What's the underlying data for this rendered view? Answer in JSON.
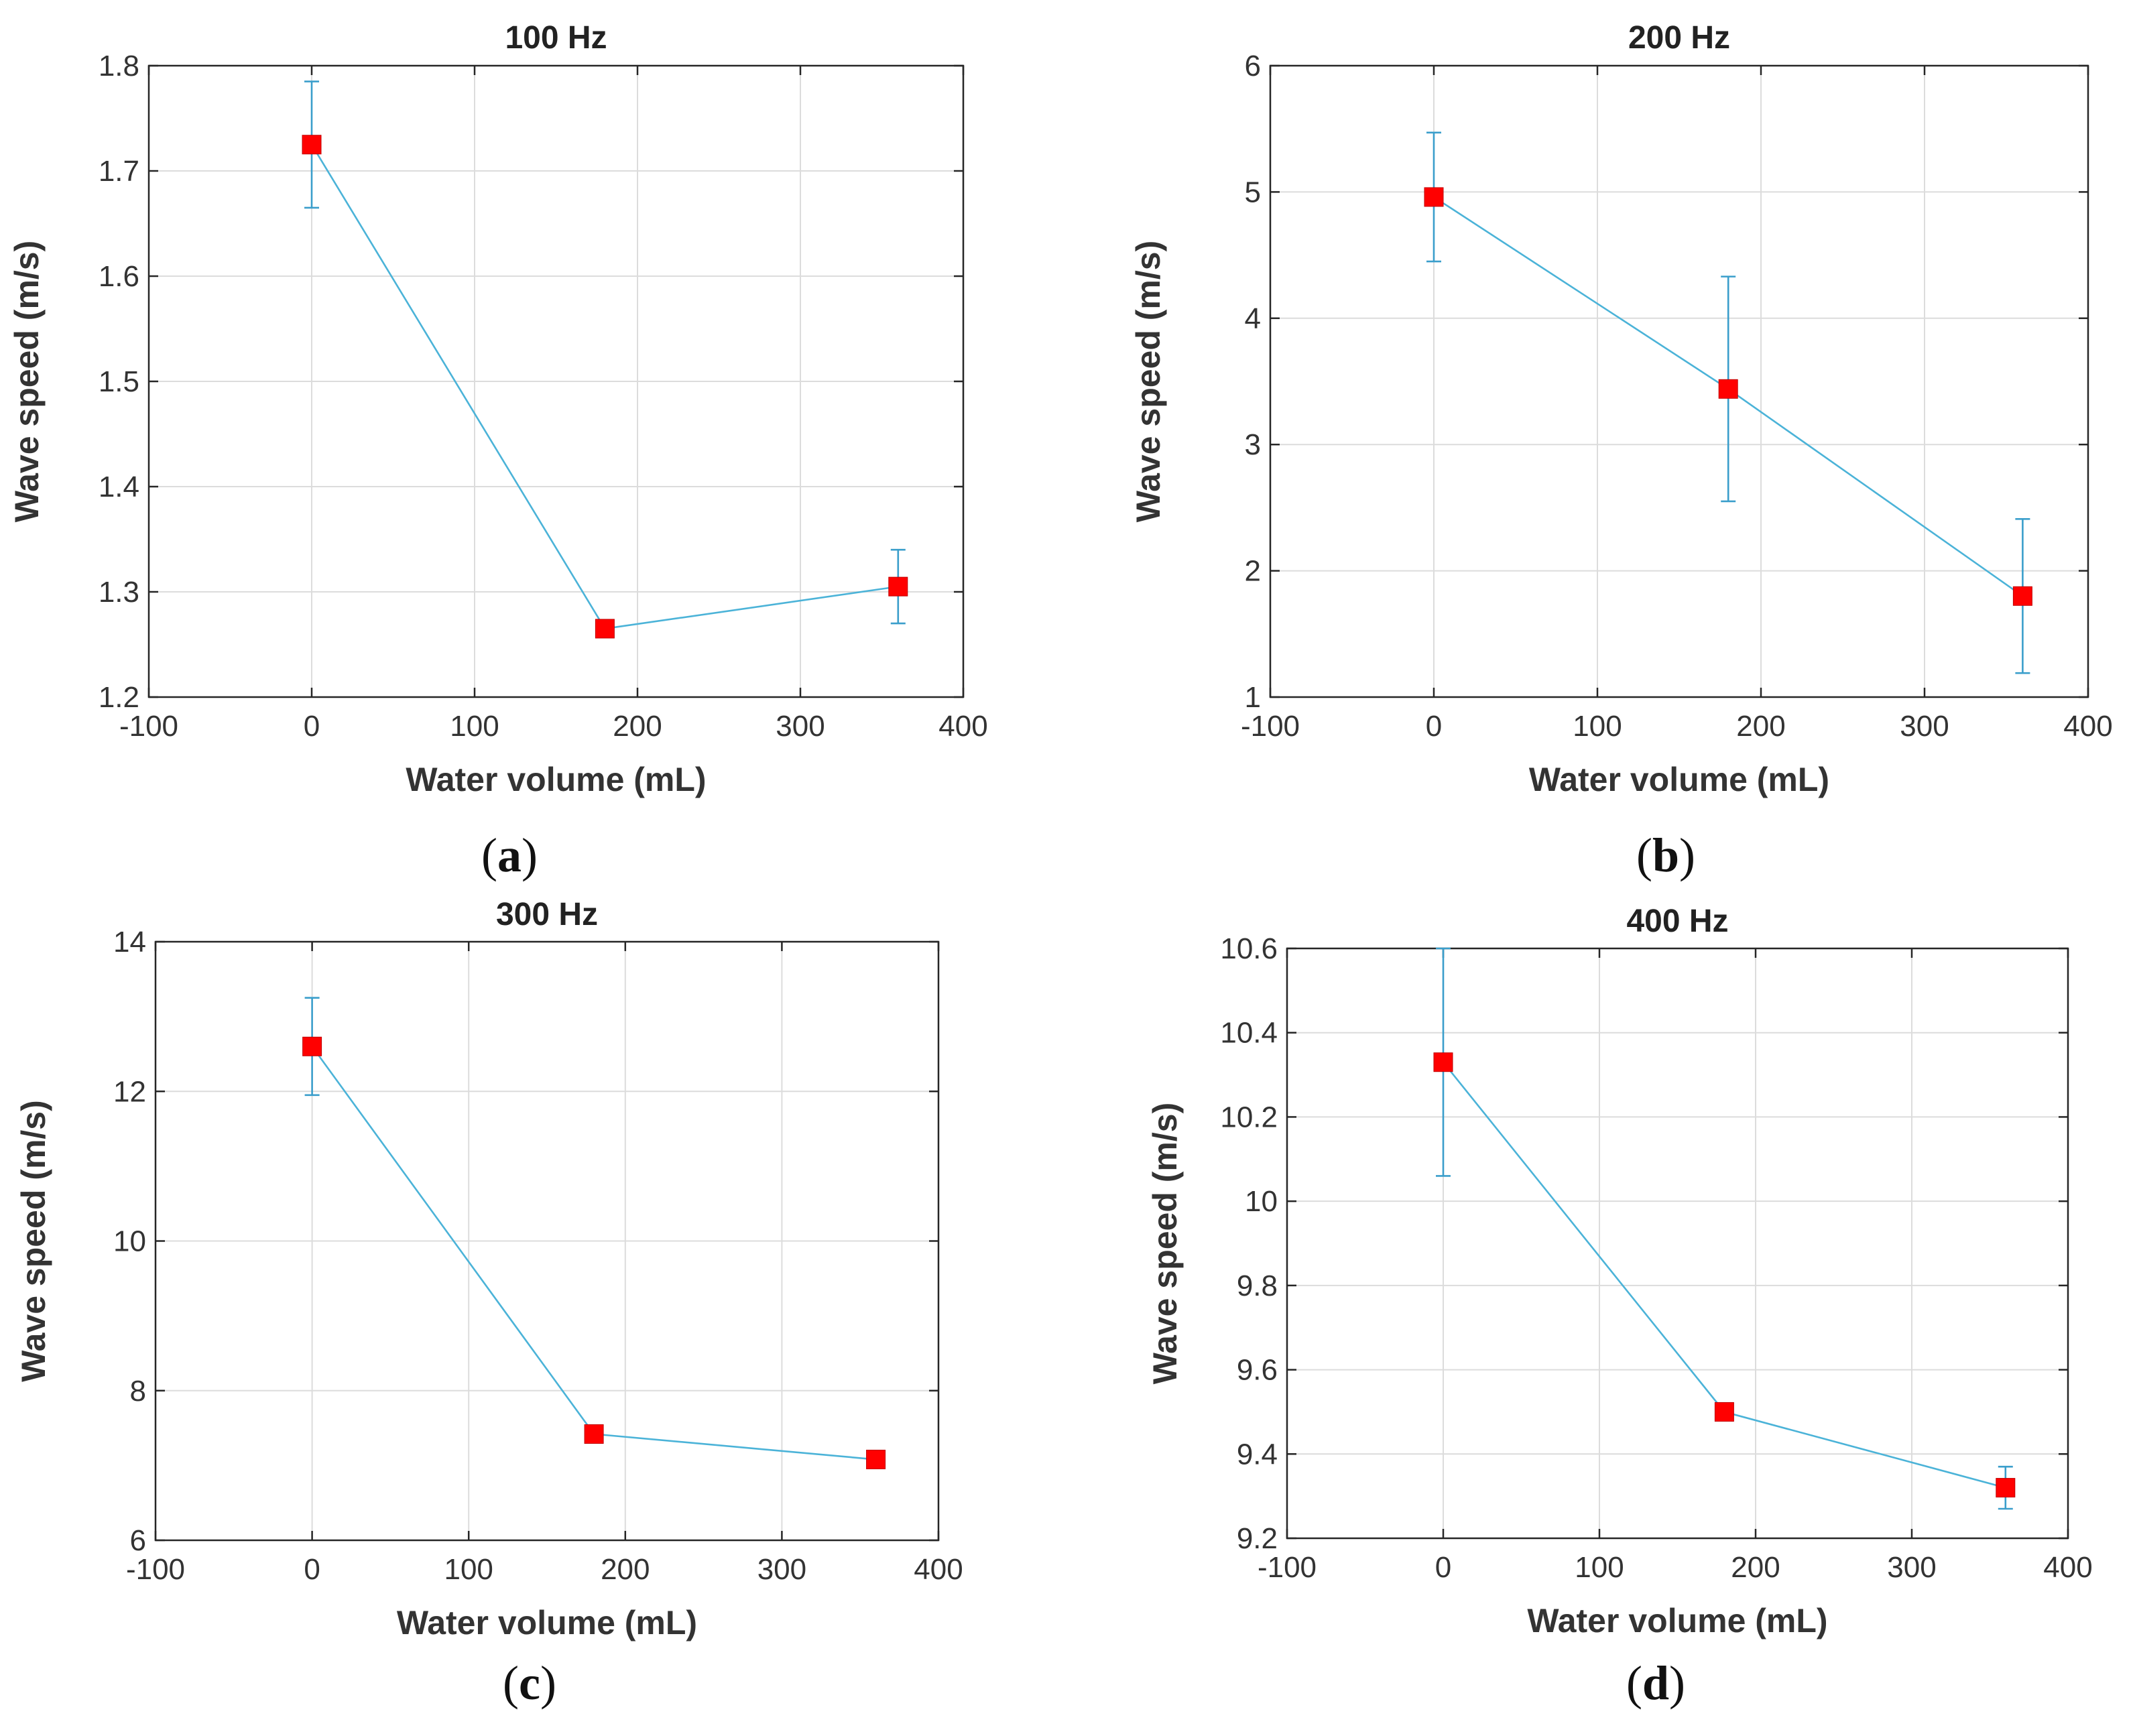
{
  "chart_data": [
    {
      "type": "line",
      "panel_letter": "a",
      "title": "100 Hz",
      "xlabel": "Water volume (mL)",
      "ylabel": "Wave speed (m/s)",
      "xlim": [
        -100,
        400
      ],
      "ylim": [
        1.2,
        1.8
      ],
      "x_ticks": [
        "-100",
        "0",
        "100",
        "200",
        "300",
        "400"
      ],
      "y_ticks": [
        "1.2",
        "1.3",
        "1.4",
        "1.5",
        "1.6",
        "1.7",
        "1.8"
      ],
      "grid": true,
      "x": [
        0,
        180,
        360
      ],
      "y": [
        1.725,
        1.265,
        1.305
      ],
      "err": [
        0.06,
        0.003,
        0.035
      ]
    },
    {
      "type": "line",
      "panel_letter": "b",
      "title": "200 Hz",
      "xlabel": "Water volume (mL)",
      "ylabel": "Wave speed (m/s)",
      "xlim": [
        -100,
        400
      ],
      "ylim": [
        1,
        6
      ],
      "x_ticks": [
        "-100",
        "0",
        "100",
        "200",
        "300",
        "400"
      ],
      "y_ticks": [
        "1",
        "2",
        "3",
        "4",
        "5",
        "6"
      ],
      "grid": true,
      "x": [
        0,
        180,
        360
      ],
      "y": [
        4.96,
        3.44,
        1.8
      ],
      "err": [
        0.51,
        0.89,
        0.61
      ]
    },
    {
      "type": "line",
      "panel_letter": "c",
      "title": "300 Hz",
      "xlabel": "Water volume (mL)",
      "ylabel": "Wave speed (m/s)",
      "xlim": [
        -100,
        400
      ],
      "ylim": [
        6,
        14
      ],
      "x_ticks": [
        "-100",
        "0",
        "100",
        "200",
        "300",
        "400"
      ],
      "y_ticks": [
        "6",
        "8",
        "10",
        "12",
        "14"
      ],
      "grid": true,
      "x": [
        0,
        180,
        360
      ],
      "y": [
        12.6,
        7.42,
        7.08
      ],
      "err": [
        0.65,
        0.04,
        0.03
      ]
    },
    {
      "type": "line",
      "panel_letter": "d",
      "title": "400 Hz",
      "xlabel": "Water volume (mL)",
      "ylabel": "Wave speed (m/s)",
      "xlim": [
        -100,
        400
      ],
      "ylim": [
        9.2,
        10.6
      ],
      "x_ticks": [
        "-100",
        "0",
        "100",
        "200",
        "300",
        "400"
      ],
      "y_ticks": [
        "9.2",
        "9.4",
        "9.6",
        "9.8",
        "10",
        "10.2",
        "10.4",
        "10.6"
      ],
      "grid": true,
      "x": [
        0,
        180,
        360
      ],
      "y": [
        10.33,
        9.5,
        9.32
      ],
      "err": [
        0.27,
        0.005,
        0.05
      ]
    }
  ],
  "colors": {
    "line": "#4bb3d8",
    "errorbar": "#3a9ecb",
    "marker": "#ff0000",
    "grid": "#dcdcdc"
  }
}
